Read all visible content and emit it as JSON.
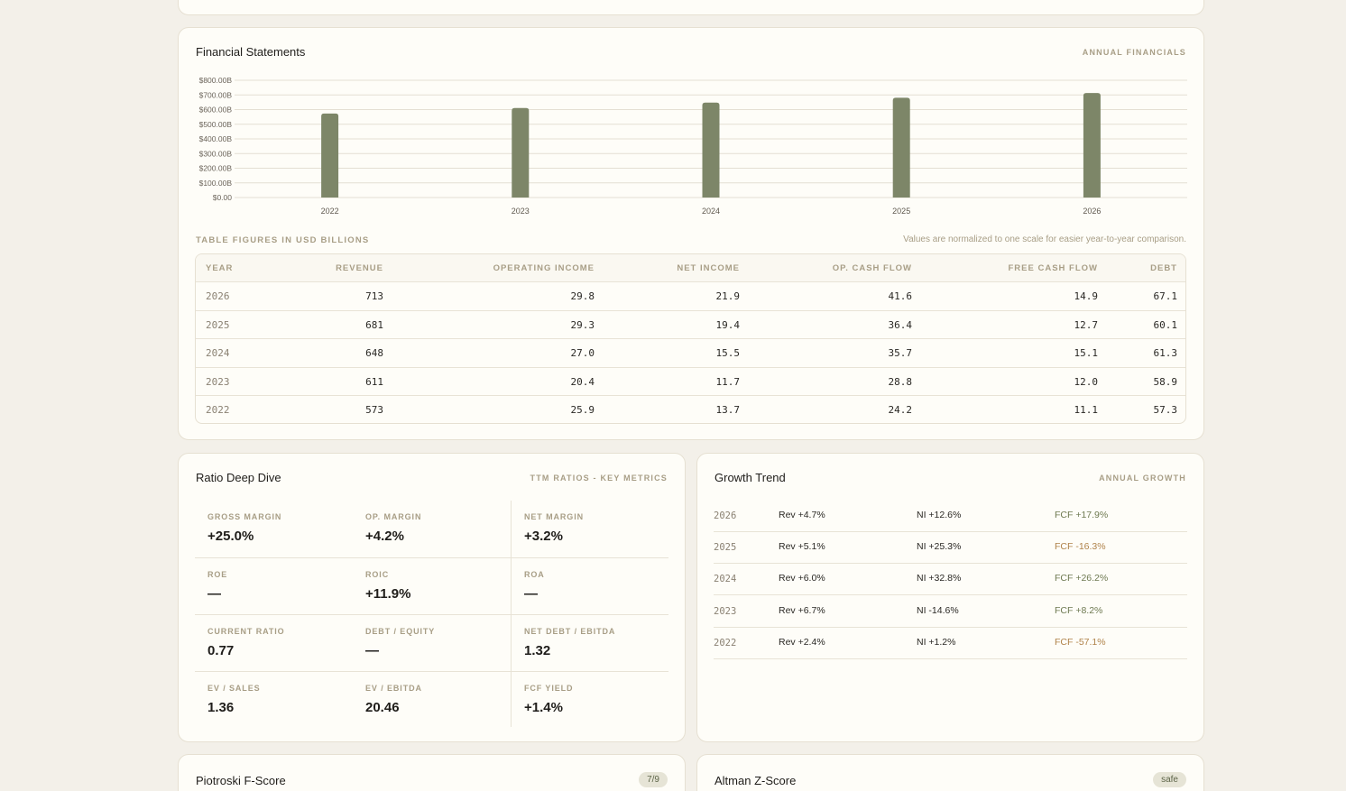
{
  "financials": {
    "title": "Financial Statements",
    "tag": "ANNUAL FINANCIALS",
    "table_caption": "TABLE FIGURES IN USD BILLIONS",
    "table_note": "Values are normalized to one scale for easier year-to-year comparison.",
    "columns": [
      "YEAR",
      "REVENUE",
      "OPERATING INCOME",
      "NET INCOME",
      "OP. CASH FLOW",
      "FREE CASH FLOW",
      "DEBT"
    ],
    "rows": [
      [
        "2026",
        "713",
        "29.8",
        "21.9",
        "41.6",
        "14.9",
        "67.1"
      ],
      [
        "2025",
        "681",
        "29.3",
        "19.4",
        "36.4",
        "12.7",
        "60.1"
      ],
      [
        "2024",
        "648",
        "27.0",
        "15.5",
        "35.7",
        "15.1",
        "61.3"
      ],
      [
        "2023",
        "611",
        "20.4",
        "11.7",
        "28.8",
        "12.0",
        "58.9"
      ],
      [
        "2022",
        "573",
        "25.9",
        "13.7",
        "24.2",
        "11.1",
        "57.3"
      ]
    ]
  },
  "chart_data": {
    "type": "bar",
    "categories": [
      "2022",
      "2023",
      "2024",
      "2025",
      "2026"
    ],
    "values": [
      573,
      611,
      648,
      681,
      713
    ],
    "yticks": [
      "$800.00B",
      "$700.00B",
      "$600.00B",
      "$500.00B",
      "$400.00B",
      "$300.00B",
      "$200.00B",
      "$100.00B",
      "$0.00"
    ],
    "ylim": [
      0,
      800
    ],
    "grid": true,
    "bar_color": "#7d8668"
  },
  "ratios": {
    "title": "Ratio Deep Dive",
    "tag": "TTM RATIOS - KEY METRICS",
    "items": [
      {
        "label": "GROSS MARGIN",
        "value": "+25.0%"
      },
      {
        "label": "OP. MARGIN",
        "value": "+4.2%"
      },
      {
        "label": "NET MARGIN",
        "value": "+3.2%"
      },
      {
        "label": "ROE",
        "value": "—"
      },
      {
        "label": "ROIC",
        "value": "+11.9%"
      },
      {
        "label": "ROA",
        "value": "—"
      },
      {
        "label": "CURRENT RATIO",
        "value": "0.77"
      },
      {
        "label": "DEBT / EQUITY",
        "value": "—"
      },
      {
        "label": "NET DEBT / EBITDA",
        "value": "1.32"
      },
      {
        "label": "EV / SALES",
        "value": "1.36"
      },
      {
        "label": "EV / EBITDA",
        "value": "20.46"
      },
      {
        "label": "FCF YIELD",
        "value": "+1.4%"
      }
    ]
  },
  "growth": {
    "title": "Growth Trend",
    "tag": "ANNUAL GROWTH",
    "rows": [
      {
        "year": "2026",
        "rev": "Rev +4.7%",
        "ni": "NI +12.6%",
        "fcf": "FCF +17.9%",
        "fcf_negative": false
      },
      {
        "year": "2025",
        "rev": "Rev +5.1%",
        "ni": "NI +25.3%",
        "fcf": "FCF -16.3%",
        "fcf_negative": true
      },
      {
        "year": "2024",
        "rev": "Rev +6.0%",
        "ni": "NI +32.8%",
        "fcf": "FCF +26.2%",
        "fcf_negative": false
      },
      {
        "year": "2023",
        "rev": "Rev +6.7%",
        "ni": "NI -14.6%",
        "fcf": "FCF +8.2%",
        "fcf_negative": false
      },
      {
        "year": "2022",
        "rev": "Rev +2.4%",
        "ni": "NI +1.2%",
        "fcf": "FCF -57.1%",
        "fcf_negative": true
      }
    ],
    "positive_color": "#6f7a52",
    "negative_color": "#b0834a"
  },
  "piotroski": {
    "title": "Piotroski F-Score",
    "badge": "7/9"
  },
  "altman": {
    "title": "Altman Z-Score",
    "badge": "safe"
  }
}
